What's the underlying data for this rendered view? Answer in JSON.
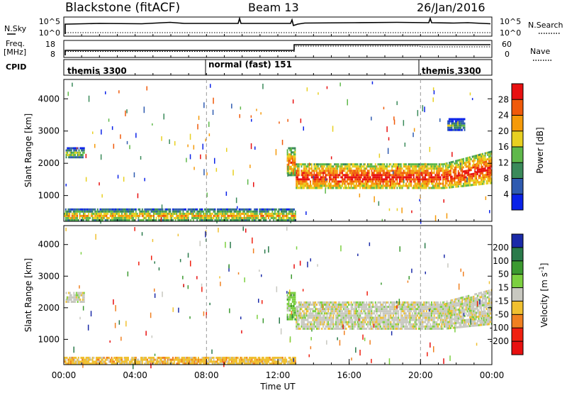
{
  "header": {
    "radar": "Blackstone (fitACF)",
    "beam": "Beam 13",
    "date": "26/Jan/2016"
  },
  "top_panels": {
    "nsky_label": "N.Sky",
    "nsky_ticks": [
      "10^5",
      "10^0"
    ],
    "nsearch_label": "N.Search",
    "nsearch_ticks": [
      "10^5",
      "10^0"
    ],
    "freq_label": "Freq.",
    "freq_unit": "[MHz]",
    "freq_ticks": [
      "18",
      "8"
    ],
    "nave_label": "Nave",
    "nave_ticks": [
      "60",
      "0"
    ],
    "cpid_label": "CPID",
    "cpid_segments": [
      {
        "label": "themis 3300",
        "start": 0,
        "end": 8
      },
      {
        "label": "normal (fast) 151",
        "start": 8,
        "end": 20
      },
      {
        "label": "themis 3300",
        "start": 20,
        "end": 24
      }
    ]
  },
  "chart_data": [
    {
      "type": "heatmap",
      "ylabel": "Slant Range [km]",
      "ylim": [
        200,
        4600
      ],
      "yticks": [
        1000,
        2000,
        3000,
        4000
      ],
      "xlim": [
        0,
        24
      ],
      "colorbar_label": "Power [dB]",
      "colorbar_ticks": [
        "4",
        "8",
        "12",
        "16",
        "20",
        "24",
        "28"
      ],
      "colors": [
        "#0a22e8",
        "#2f5bb0",
        "#3a8a5a",
        "#5fb84a",
        "#e8d020",
        "#f59a0a",
        "#f05a0a",
        "#e81010"
      ],
      "blobs": [
        {
          "t0": 0.1,
          "t1": 1.2,
          "r0": 2150,
          "r1": 2500,
          "level": 2
        },
        {
          "t0": 13.0,
          "t1": 24.0,
          "r0": 1200,
          "r1": 2000,
          "level": 5
        },
        {
          "t0": 12.5,
          "t1": 13.0,
          "r0": 1600,
          "r1": 2500,
          "level": 4
        },
        {
          "t0": 0.0,
          "t1": 13.0,
          "r0": 200,
          "r1": 600,
          "level": 3
        },
        {
          "t0": 21.5,
          "t1": 22.5,
          "r0": 3000,
          "r1": 3400,
          "level": 1
        }
      ]
    },
    {
      "type": "heatmap",
      "xlabel": "Time UT",
      "ylabel": "Slant Range [km]",
      "ylim": [
        200,
        4600
      ],
      "yticks": [
        1000,
        2000,
        3000,
        4000
      ],
      "xlim": [
        0,
        24
      ],
      "xticks": [
        "00:00",
        "04:00",
        "08:00",
        "12:00",
        "16:00",
        "20:00",
        "00:00"
      ],
      "colorbar_label": "Velocity [m s^-1]",
      "colorbar_ticks": [
        "200",
        "100",
        "50",
        "15",
        "-15",
        "-50",
        "-100",
        "-200"
      ],
      "colors": [
        "#1a2aa8",
        "#2a7a4a",
        "#3c9a30",
        "#7cd040",
        "#c8c8c0",
        "#f0c030",
        "#f08020",
        "#f02010",
        "#e81010"
      ],
      "blobs": [
        {
          "t0": 0.1,
          "t1": 1.2,
          "r0": 2150,
          "r1": 2500,
          "level": 4
        },
        {
          "t0": 13.0,
          "t1": 24.0,
          "r0": 1300,
          "r1": 2200,
          "level": 4
        },
        {
          "t0": 12.5,
          "t1": 13.0,
          "r0": 1600,
          "r1": 2500,
          "level": 3
        },
        {
          "t0": 0.0,
          "t1": 13.0,
          "r0": 200,
          "r1": 450,
          "level": 5
        }
      ]
    }
  ]
}
